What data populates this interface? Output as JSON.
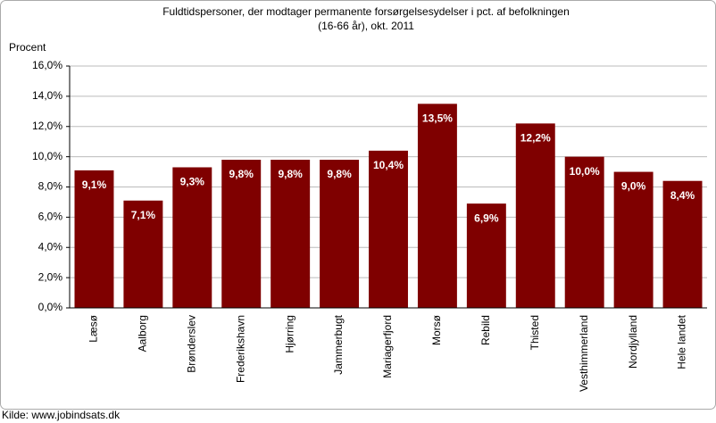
{
  "chart_data": {
    "type": "bar",
    "title": [
      "Fuldtidspersoner, der modtager permanente forsørgelsesydelser i pct. af befolkningen",
      "(16-66 år), okt. 2011"
    ],
    "y_label": "Procent",
    "source": "Kilde: www.jobindsats.dk",
    "categories": [
      "Læsø",
      "Aalborg",
      "Brønderslev",
      "Frederikshavn",
      "Hjørring",
      "Jammerbugt",
      "Mariagerfjord",
      "Morsø",
      "Rebild",
      "Thisted",
      "Vesthimmerland",
      "Nordjylland",
      "Hele landet"
    ],
    "values": [
      9.1,
      7.1,
      9.3,
      9.8,
      9.8,
      9.8,
      10.4,
      13.5,
      6.9,
      12.2,
      10.0,
      9.0,
      8.4
    ],
    "value_labels": [
      "9,1%",
      "7,1%",
      "9,3%",
      "9,8%",
      "9,8%",
      "9,8%",
      "10,4%",
      "13,5%",
      "6,9%",
      "12,2%",
      "10,0%",
      "9,0%",
      "8,4%"
    ],
    "color": "#7f0000",
    "ylim": [
      0,
      16
    ],
    "yticks": [
      {
        "value": 0,
        "label": "0,0%"
      },
      {
        "value": 2,
        "label": "2,0%"
      },
      {
        "value": 4,
        "label": "4,0%"
      },
      {
        "value": 6,
        "label": "6,0%"
      },
      {
        "value": 8,
        "label": "8,0%"
      },
      {
        "value": 10,
        "label": "10,0%"
      },
      {
        "value": 12,
        "label": "12,0%"
      },
      {
        "value": 14,
        "label": "14,0%"
      },
      {
        "value": 16,
        "label": "16,0%"
      }
    ],
    "grid": true
  }
}
